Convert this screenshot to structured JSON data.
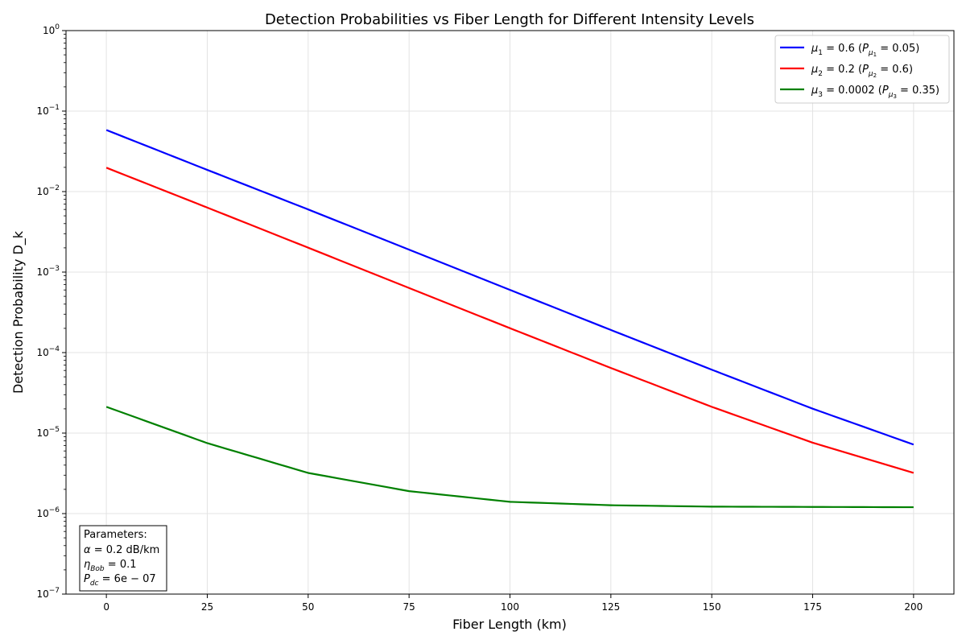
{
  "chart_data": {
    "type": "line",
    "title": "Detection Probabilities vs Fiber Length for Different Intensity Levels",
    "xlabel": "Fiber Length (km)",
    "ylabel": "Detection Probability D_k",
    "xlim": [
      -10,
      210
    ],
    "ylim": [
      1e-07,
      1
    ],
    "yscale": "log",
    "grid": true,
    "legend_position": "top-right",
    "x_ticks": [
      0,
      25,
      50,
      75,
      100,
      125,
      150,
      175,
      200
    ],
    "x_tick_labels": [
      "0",
      "25",
      "50",
      "75",
      "100",
      "125",
      "150",
      "175",
      "200"
    ],
    "y_ticks": [
      1e-07,
      1e-06,
      1e-05,
      0.0001,
      0.001,
      0.01,
      0.1,
      1
    ],
    "y_tick_labels": [
      {
        "base": "10",
        "exp": "−7"
      },
      {
        "base": "10",
        "exp": "−6"
      },
      {
        "base": "10",
        "exp": "−5"
      },
      {
        "base": "10",
        "exp": "−4"
      },
      {
        "base": "10",
        "exp": "−3"
      },
      {
        "base": "10",
        "exp": "−2"
      },
      {
        "base": "10",
        "exp": "−1"
      },
      {
        "base": "10",
        "exp": "0"
      }
    ],
    "x": [
      0,
      25,
      50,
      75,
      100,
      125,
      150,
      175,
      200
    ],
    "series": [
      {
        "name": "μ1 = 0.6 (Pμ1 = 0.05)",
        "legend": {
          "mu_sym": "μ",
          "mu_sub": "1",
          "mu_val": " = 0.6 (",
          "p_sym": "P",
          "p_sub": "μ",
          "p_subsub": "1",
          "p_val": " = 0.05)"
        },
        "color": "#0000ff",
        "values": [
          0.0582,
          0.0186,
          0.006,
          0.0019,
          0.000601,
          0.000191,
          6.13e-05,
          2.01e-05,
          7.2e-06
        ]
      },
      {
        "name": "μ2 = 0.2 (Pμ2 = 0.6)",
        "legend": {
          "mu_sym": "μ",
          "mu_sub": "2",
          "mu_val": " = 0.2 (",
          "p_sym": "P",
          "p_sub": "μ",
          "p_subsub": "2",
          "p_val": " = 0.6)"
        },
        "color": "#ff0000",
        "values": [
          0.0198,
          0.00633,
          0.00201,
          0.000634,
          0.000201,
          6.44e-05,
          2.12e-05,
          7.6e-06,
          3.2e-06
        ]
      },
      {
        "name": "μ3 = 0.0002 (Pμ3 = 0.35)",
        "legend": {
          "mu_sym": "μ",
          "mu_sub": "3",
          "mu_val": " = 0.0002 (",
          "p_sym": "P",
          "p_sub": "μ",
          "p_subsub": "3",
          "p_val": " = 0.35)"
        },
        "color": "#008000",
        "values": [
          2.12e-05,
          7.5e-06,
          3.2e-06,
          1.9e-06,
          1.4e-06,
          1.27e-06,
          1.22e-06,
          1.21e-06,
          1.2e-06
        ]
      }
    ],
    "annotation": {
      "heading": "Parameters:",
      "lines": [
        {
          "sym": "α",
          "sub": "",
          "text": " = 0.2 dB/km"
        },
        {
          "sym": "η",
          "sub": "Bob",
          "text": " = 0.1"
        },
        {
          "sym": "P",
          "sub": "dc",
          "text": " = 6e − 07"
        }
      ]
    }
  }
}
